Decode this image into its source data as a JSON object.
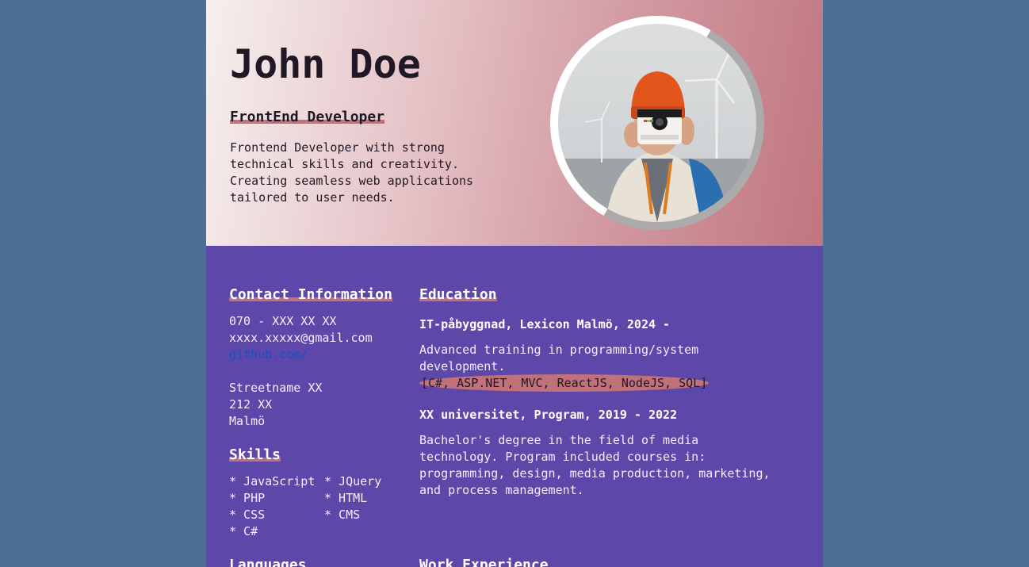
{
  "header": {
    "name": "John Doe",
    "role": "FrontEnd Developer",
    "summary": "Frontend Developer with strong\ntechnical skills and creativity.\nCreating seamless web applications\ntailored to user needs."
  },
  "contact": {
    "heading": "Contact Information",
    "phone": "070 - XXX XX XX",
    "email": "xxxx.xxxxx@gmail.com",
    "github": "github.com/",
    "address": "Streetname XX\n212 XX\nMalmö"
  },
  "skills": {
    "heading": "Skills",
    "items": [
      "* JavaScript",
      "* JQuery",
      "* PHP",
      "* HTML",
      "* CSS",
      "* CMS",
      "* C#"
    ]
  },
  "languages": {
    "heading": "Languages"
  },
  "education": {
    "heading": "Education",
    "entries": [
      {
        "title": "IT-påbyggnad, Lexicon Malmö, 2024 -",
        "description": "Advanced training in programming/system\ndevelopment.",
        "tech": "[C#, ASP.NET, MVC, ReactJS, NodeJS, SQL]"
      },
      {
        "title": "XX universitet, Program, 2019 - 2022",
        "description": "Bachelor's degree in the field of media\ntechnology. Program included courses in:\nprogramming, design, media production, marketing,\nand process management."
      }
    ]
  },
  "work": {
    "heading": "Work Experience"
  },
  "colors": {
    "page_background": "#4e6e93",
    "body_background": "#5d48aa",
    "accent_underline": "#c1717a",
    "header_gradient": [
      "#f6efef",
      "#c0767f"
    ],
    "link": "#1a4fc4"
  },
  "icons": {
    "profile_photo": "profile-photo-person-with-camera"
  }
}
